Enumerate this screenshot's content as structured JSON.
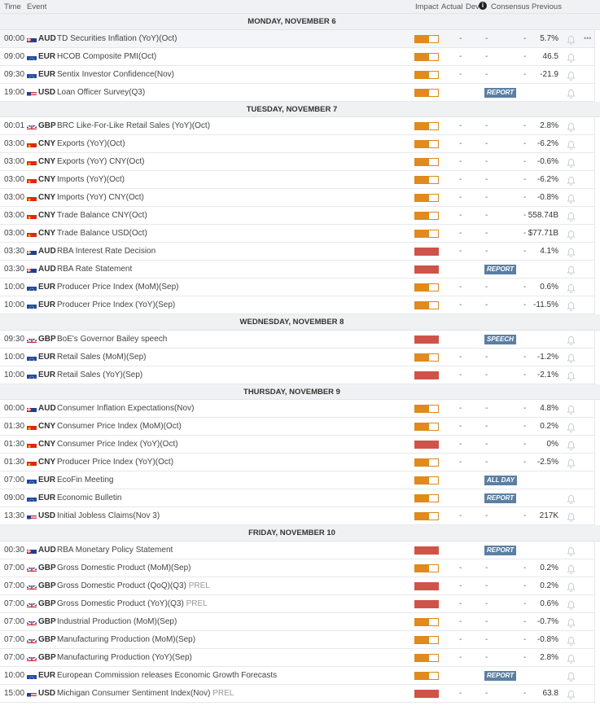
{
  "header": {
    "time": "Time",
    "event": "Event",
    "impact": "Impact",
    "actual": "Actual",
    "dev": "Dev",
    "consensus": "Consensus",
    "previous": "Previous"
  },
  "colors": {
    "medium_impact": "#e38a1c",
    "high_impact": "#cf5348",
    "tag_bg": "#5a7fa3"
  },
  "days": [
    {
      "label": "MONDAY, NOVEMBER 6",
      "events": [
        {
          "time": "00:00",
          "currency": "AUD",
          "event": "TD Securities Inflation (YoY)(Oct)",
          "impact": "medium",
          "actual": "-",
          "dev": "-",
          "consensus": "-",
          "previous": "5.7%",
          "highlight": true,
          "more": "•••"
        },
        {
          "time": "09:00",
          "currency": "EUR",
          "event": "HCOB Composite PMI(Oct)",
          "impact": "medium",
          "actual": "-",
          "dev": "-",
          "consensus": "-",
          "previous": "46.5"
        },
        {
          "time": "09:30",
          "currency": "EUR",
          "event": "Sentix Investor Confidence(Nov)",
          "impact": "medium",
          "actual": "-",
          "dev": "-",
          "consensus": "-",
          "previous": "-21.9"
        },
        {
          "time": "19:00",
          "currency": "USD",
          "event": "Loan Officer Survey(Q3)",
          "impact": "medium",
          "tag": "REPORT"
        }
      ]
    },
    {
      "label": "TUESDAY, NOVEMBER 7",
      "events": [
        {
          "time": "00:01",
          "currency": "GBP",
          "event": "BRC Like-For-Like Retail Sales (YoY)(Oct)",
          "impact": "medium",
          "actual": "-",
          "dev": "-",
          "consensus": "-",
          "previous": "2.8%"
        },
        {
          "time": "03:00",
          "currency": "CNY",
          "event": "Exports (YoY)(Oct)",
          "impact": "medium",
          "actual": "-",
          "dev": "-",
          "consensus": "-",
          "previous": "-6.2%"
        },
        {
          "time": "03:00",
          "currency": "CNY",
          "event": "Exports (YoY) CNY(Oct)",
          "impact": "medium",
          "actual": "-",
          "dev": "-",
          "consensus": "-",
          "previous": "-0.6%"
        },
        {
          "time": "03:00",
          "currency": "CNY",
          "event": "Imports (YoY)(Oct)",
          "impact": "medium",
          "actual": "-",
          "dev": "-",
          "consensus": "-",
          "previous": "-6.2%"
        },
        {
          "time": "03:00",
          "currency": "CNY",
          "event": "Imports (YoY) CNY(Oct)",
          "impact": "medium",
          "actual": "-",
          "dev": "-",
          "consensus": "-",
          "previous": "-0.8%"
        },
        {
          "time": "03:00",
          "currency": "CNY",
          "event": "Trade Balance CNY(Oct)",
          "impact": "medium",
          "actual": "-",
          "dev": "-",
          "consensus": "-",
          "previous": "558.74B"
        },
        {
          "time": "03:00",
          "currency": "CNY",
          "event": "Trade Balance USD(Oct)",
          "impact": "medium",
          "actual": "-",
          "dev": "-",
          "consensus": "-",
          "previous": "$77.71B"
        },
        {
          "time": "03:30",
          "currency": "AUD",
          "event": "RBA Interest Rate Decision",
          "impact": "high",
          "actual": "-",
          "dev": "-",
          "consensus": "-",
          "previous": "4.1%"
        },
        {
          "time": "03:30",
          "currency": "AUD",
          "event": "RBA Rate Statement",
          "impact": "high",
          "tag": "REPORT"
        },
        {
          "time": "10:00",
          "currency": "EUR",
          "event": "Producer Price Index (MoM)(Sep)",
          "impact": "medium",
          "actual": "-",
          "dev": "-",
          "consensus": "-",
          "previous": "0.6%"
        },
        {
          "time": "10:00",
          "currency": "EUR",
          "event": "Producer Price Index (YoY)(Sep)",
          "impact": "medium",
          "actual": "-",
          "dev": "-",
          "consensus": "-",
          "previous": "-11.5%"
        }
      ]
    },
    {
      "label": "WEDNESDAY, NOVEMBER 8",
      "events": [
        {
          "time": "09:30",
          "currency": "GBP",
          "event": "BoE's Governor Bailey speech",
          "impact": "high",
          "tag": "SPEECH"
        },
        {
          "time": "10:00",
          "currency": "EUR",
          "event": "Retail Sales (MoM)(Sep)",
          "impact": "medium",
          "actual": "-",
          "dev": "-",
          "consensus": "-",
          "previous": "-1.2%"
        },
        {
          "time": "10:00",
          "currency": "EUR",
          "event": "Retail Sales (YoY)(Sep)",
          "impact": "high",
          "actual": "-",
          "dev": "-",
          "consensus": "-",
          "previous": "-2.1%"
        }
      ]
    },
    {
      "label": "THURSDAY, NOVEMBER 9",
      "events": [
        {
          "time": "00:00",
          "currency": "AUD",
          "event": "Consumer Inflation Expectations(Nov)",
          "impact": "medium",
          "actual": "-",
          "dev": "-",
          "consensus": "-",
          "previous": "4.8%"
        },
        {
          "time": "01:30",
          "currency": "CNY",
          "event": "Consumer Price Index (MoM)(Oct)",
          "impact": "medium",
          "actual": "-",
          "dev": "-",
          "consensus": "-",
          "previous": "0.2%"
        },
        {
          "time": "01:30",
          "currency": "CNY",
          "event": "Consumer Price Index (YoY)(Oct)",
          "impact": "high",
          "actual": "-",
          "dev": "-",
          "consensus": "-",
          "previous": "0%"
        },
        {
          "time": "01:30",
          "currency": "CNY",
          "event": "Producer Price Index (YoY)(Oct)",
          "impact": "medium",
          "actual": "-",
          "dev": "-",
          "consensus": "-",
          "previous": "-2.5%"
        },
        {
          "time": "07:00",
          "currency": "EUR",
          "event": "EcoFin Meeting",
          "impact": "medium",
          "tag": "ALL DAY",
          "nobell": true
        },
        {
          "time": "09:00",
          "currency": "EUR",
          "event": "Economic Bulletin",
          "impact": "medium",
          "tag": "REPORT"
        },
        {
          "time": "13:30",
          "currency": "USD",
          "event": "Initial Jobless Claims(Nov 3)",
          "impact": "medium",
          "actual": "-",
          "dev": "-",
          "consensus": "-",
          "previous": "217K"
        }
      ]
    },
    {
      "label": "FRIDAY, NOVEMBER 10",
      "events": [
        {
          "time": "00:30",
          "currency": "AUD",
          "event": "RBA Monetary Policy Statement",
          "impact": "high",
          "tag": "REPORT"
        },
        {
          "time": "07:00",
          "currency": "GBP",
          "event": "Gross Domestic Product (MoM)(Sep)",
          "impact": "medium",
          "actual": "-",
          "dev": "-",
          "consensus": "-",
          "previous": "0.2%"
        },
        {
          "time": "07:00",
          "currency": "GBP",
          "event": "Gross Domestic Product (QoQ)(Q3)",
          "suffix": "PREL",
          "impact": "high",
          "actual": "-",
          "dev": "-",
          "consensus": "-",
          "previous": "0.2%"
        },
        {
          "time": "07:00",
          "currency": "GBP",
          "event": "Gross Domestic Product (YoY)(Q3)",
          "suffix": "PREL",
          "impact": "high",
          "actual": "-",
          "dev": "-",
          "consensus": "-",
          "previous": "0.6%"
        },
        {
          "time": "07:00",
          "currency": "GBP",
          "event": "Industrial Production (MoM)(Sep)",
          "impact": "medium",
          "actual": "-",
          "dev": "-",
          "consensus": "-",
          "previous": "-0.7%"
        },
        {
          "time": "07:00",
          "currency": "GBP",
          "event": "Manufacturing Production (MoM)(Sep)",
          "impact": "medium",
          "actual": "-",
          "dev": "-",
          "consensus": "-",
          "previous": "-0.8%"
        },
        {
          "time": "07:00",
          "currency": "GBP",
          "event": "Manufacturing Production (YoY)(Sep)",
          "impact": "medium",
          "actual": "-",
          "dev": "-",
          "consensus": "-",
          "previous": "2.8%"
        },
        {
          "time": "10:00",
          "currency": "EUR",
          "event": "European Commission releases Economic Growth Forecasts",
          "impact": "medium",
          "tag": "REPORT"
        },
        {
          "time": "15:00",
          "currency": "USD",
          "event": "Michigan Consumer Sentiment Index(Nov)",
          "suffix": "PREL",
          "impact": "high",
          "actual": "-",
          "dev": "-",
          "consensus": "-",
          "previous": "63.8"
        }
      ]
    }
  ]
}
